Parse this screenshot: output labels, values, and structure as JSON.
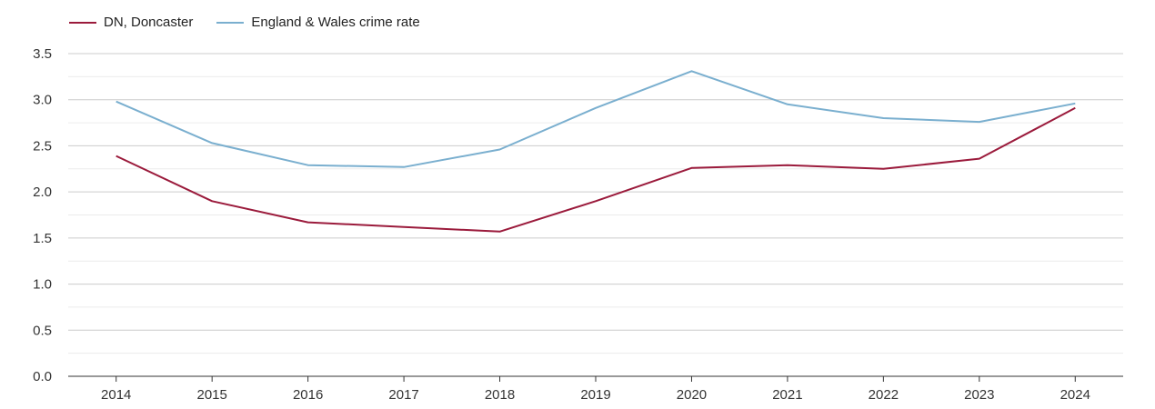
{
  "chart_data": {
    "type": "line",
    "title": "",
    "xlabel": "",
    "ylabel": "",
    "categories": [
      "2014",
      "2015",
      "2016",
      "2017",
      "2018",
      "2019",
      "2020",
      "2021",
      "2022",
      "2023",
      "2024"
    ],
    "ylim": [
      0,
      3.5
    ],
    "yticks": [
      "0.0",
      "0.5",
      "1.0",
      "1.5",
      "2.0",
      "2.5",
      "3.0",
      "3.5"
    ],
    "grid": true,
    "legend_position": "top-left",
    "series": [
      {
        "name": "DN, Doncaster",
        "color": "#9b1b3c",
        "values": [
          2.39,
          1.9,
          1.67,
          1.62,
          1.57,
          1.9,
          2.26,
          2.29,
          2.25,
          2.36,
          2.91
        ]
      },
      {
        "name": "England & Wales crime rate",
        "color": "#7aafcf",
        "values": [
          2.98,
          2.53,
          2.29,
          2.27,
          2.46,
          2.91,
          3.31,
          2.95,
          2.8,
          2.76,
          2.96
        ]
      }
    ]
  }
}
